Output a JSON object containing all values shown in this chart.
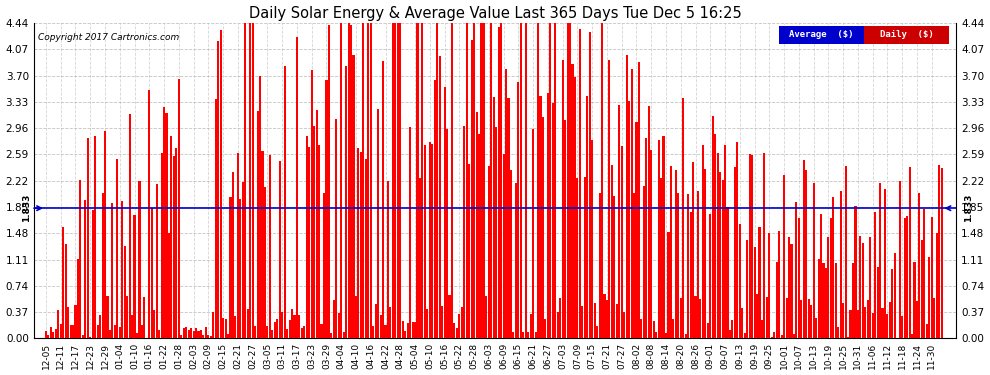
{
  "title": "Daily Solar Energy & Average Value Last 365 Days Tue Dec 5 16:25",
  "copyright": "Copyright 2017 Cartronics.com",
  "average_value": 1.833,
  "average_label": "1.833",
  "bar_color": "#ff0000",
  "average_line_color": "#0000cc",
  "background_color": "#ffffff",
  "plot_bg_color": "#ffffff",
  "grid_color": "#aaaaaa",
  "ylim": [
    0.0,
    4.44
  ],
  "yticks": [
    0.0,
    0.37,
    0.74,
    1.11,
    1.48,
    1.85,
    2.22,
    2.59,
    2.96,
    3.33,
    3.7,
    4.07,
    4.44
  ],
  "legend_avg_color": "#0000cc",
  "legend_daily_color": "#cc0000",
  "legend_avg_text": "Average  ($)",
  "legend_daily_text": "Daily  ($)",
  "x_tick_labels": [
    "12-05",
    "12-11",
    "12-17",
    "12-23",
    "12-29",
    "01-04",
    "01-10",
    "01-16",
    "01-22",
    "01-28",
    "02-03",
    "02-09",
    "02-15",
    "02-21",
    "02-27",
    "03-05",
    "03-11",
    "03-17",
    "03-23",
    "03-29",
    "04-04",
    "04-10",
    "04-16",
    "04-22",
    "04-28",
    "05-04",
    "05-10",
    "05-16",
    "05-22",
    "05-28",
    "06-03",
    "06-09",
    "06-15",
    "06-21",
    "06-27",
    "07-03",
    "07-09",
    "07-15",
    "07-21",
    "07-27",
    "08-02",
    "08-08",
    "08-14",
    "08-20",
    "08-26",
    "09-01",
    "09-07",
    "09-13",
    "09-19",
    "09-25",
    "10-01",
    "10-07",
    "10-13",
    "10-19",
    "10-25",
    "10-31",
    "11-06",
    "11-12",
    "11-18",
    "11-24",
    "11-30"
  ],
  "n_days": 365
}
